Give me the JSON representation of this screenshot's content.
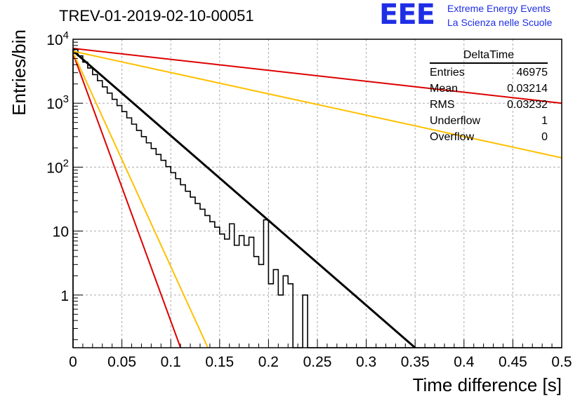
{
  "header": {
    "run_title": "TREV-01-2019-02-10-00051",
    "logo_text": "EEE",
    "logo_line1": "Extreme Energy Events",
    "logo_line2": "La Scienza nelle Scuole",
    "logo_color": "#1f2ee6"
  },
  "stats_box": {
    "title": "DeltaTime",
    "rows": [
      {
        "label": "Entries",
        "value": "46975"
      },
      {
        "label": "Mean",
        "value": "0.03214"
      },
      {
        "label": "RMS",
        "value": "0.03232"
      },
      {
        "label": "Underflow",
        "value": "1"
      },
      {
        "label": "Overflow",
        "value": "0"
      }
    ]
  },
  "chart_data": {
    "type": "histogram",
    "title": "TREV-01-2019-02-10-00051",
    "xlabel": "Time difference [s]",
    "ylabel": "Entries/bin",
    "xlim": [
      0,
      0.5
    ],
    "ylim": [
      0.15,
      10000
    ],
    "yscale": "log",
    "grid": true,
    "x_ticks": [
      "0",
      "0.05",
      "0.1",
      "0.15",
      "0.2",
      "0.25",
      "0.3",
      "0.35",
      "0.4",
      "0.45",
      "0.5"
    ],
    "y_ticks": [
      {
        "value": 1,
        "label": "1"
      },
      {
        "value": 10,
        "label": "10"
      },
      {
        "value": 100,
        "base": "10",
        "exp": "2"
      },
      {
        "value": 1000,
        "base": "10",
        "exp": "3"
      },
      {
        "value": 10000,
        "base": "10",
        "exp": "4"
      }
    ],
    "histogram": {
      "bin_width": 0.005,
      "x_start": 0,
      "counts": [
        6900,
        5500,
        4400,
        3550,
        2800,
        2250,
        1800,
        1440,
        1150,
        920,
        740,
        590,
        470,
        375,
        300,
        240,
        195,
        158,
        128,
        102,
        82,
        66,
        53,
        42,
        34,
        27,
        22,
        17.5,
        14,
        11.5,
        9,
        7.5,
        13,
        6,
        8.5,
        6,
        8,
        4,
        3,
        15,
        1.5,
        2.5,
        1,
        2,
        1.5,
        0.1,
        0.1,
        1,
        0.1,
        0.1,
        0.1,
        0.1,
        0.1,
        0.1,
        0.1,
        0.1,
        0.1,
        0.1,
        0.1,
        0.1,
        0.1,
        0.1,
        0.1,
        0.1,
        0.1,
        0.1,
        0.1,
        0.1,
        0.1,
        0.1,
        0.1,
        0.1,
        0.1,
        0.1,
        0.1,
        0.1,
        0.1,
        0.1,
        0.1,
        0.1,
        0.1,
        0.1,
        0.1,
        0.1,
        0.1,
        0.1,
        0.1,
        0.1,
        0.1,
        0.1,
        0.1,
        0.1,
        0.1,
        0.1,
        0.1,
        0.1,
        0.1,
        0.1,
        0.1,
        0.1
      ],
      "color": "#000000"
    },
    "fits": [
      {
        "x": [
          0,
          0.35
        ],
        "y": [
          6600,
          0.15
        ],
        "color": "#000000"
      },
      {
        "x": [
          0,
          0.5
        ],
        "y": [
          7200,
          1000
        ],
        "color": "#dd0000"
      },
      {
        "x": [
          0,
          0.5
        ],
        "y": [
          6500,
          140
        ],
        "color": "#ffc000"
      },
      {
        "x": [
          0,
          0.11
        ],
        "y": [
          6000,
          0.15
        ],
        "color": "#dd0000"
      },
      {
        "x": [
          0,
          0.138
        ],
        "y": [
          6200,
          0.15
        ],
        "color": "#ffc000"
      }
    ]
  }
}
